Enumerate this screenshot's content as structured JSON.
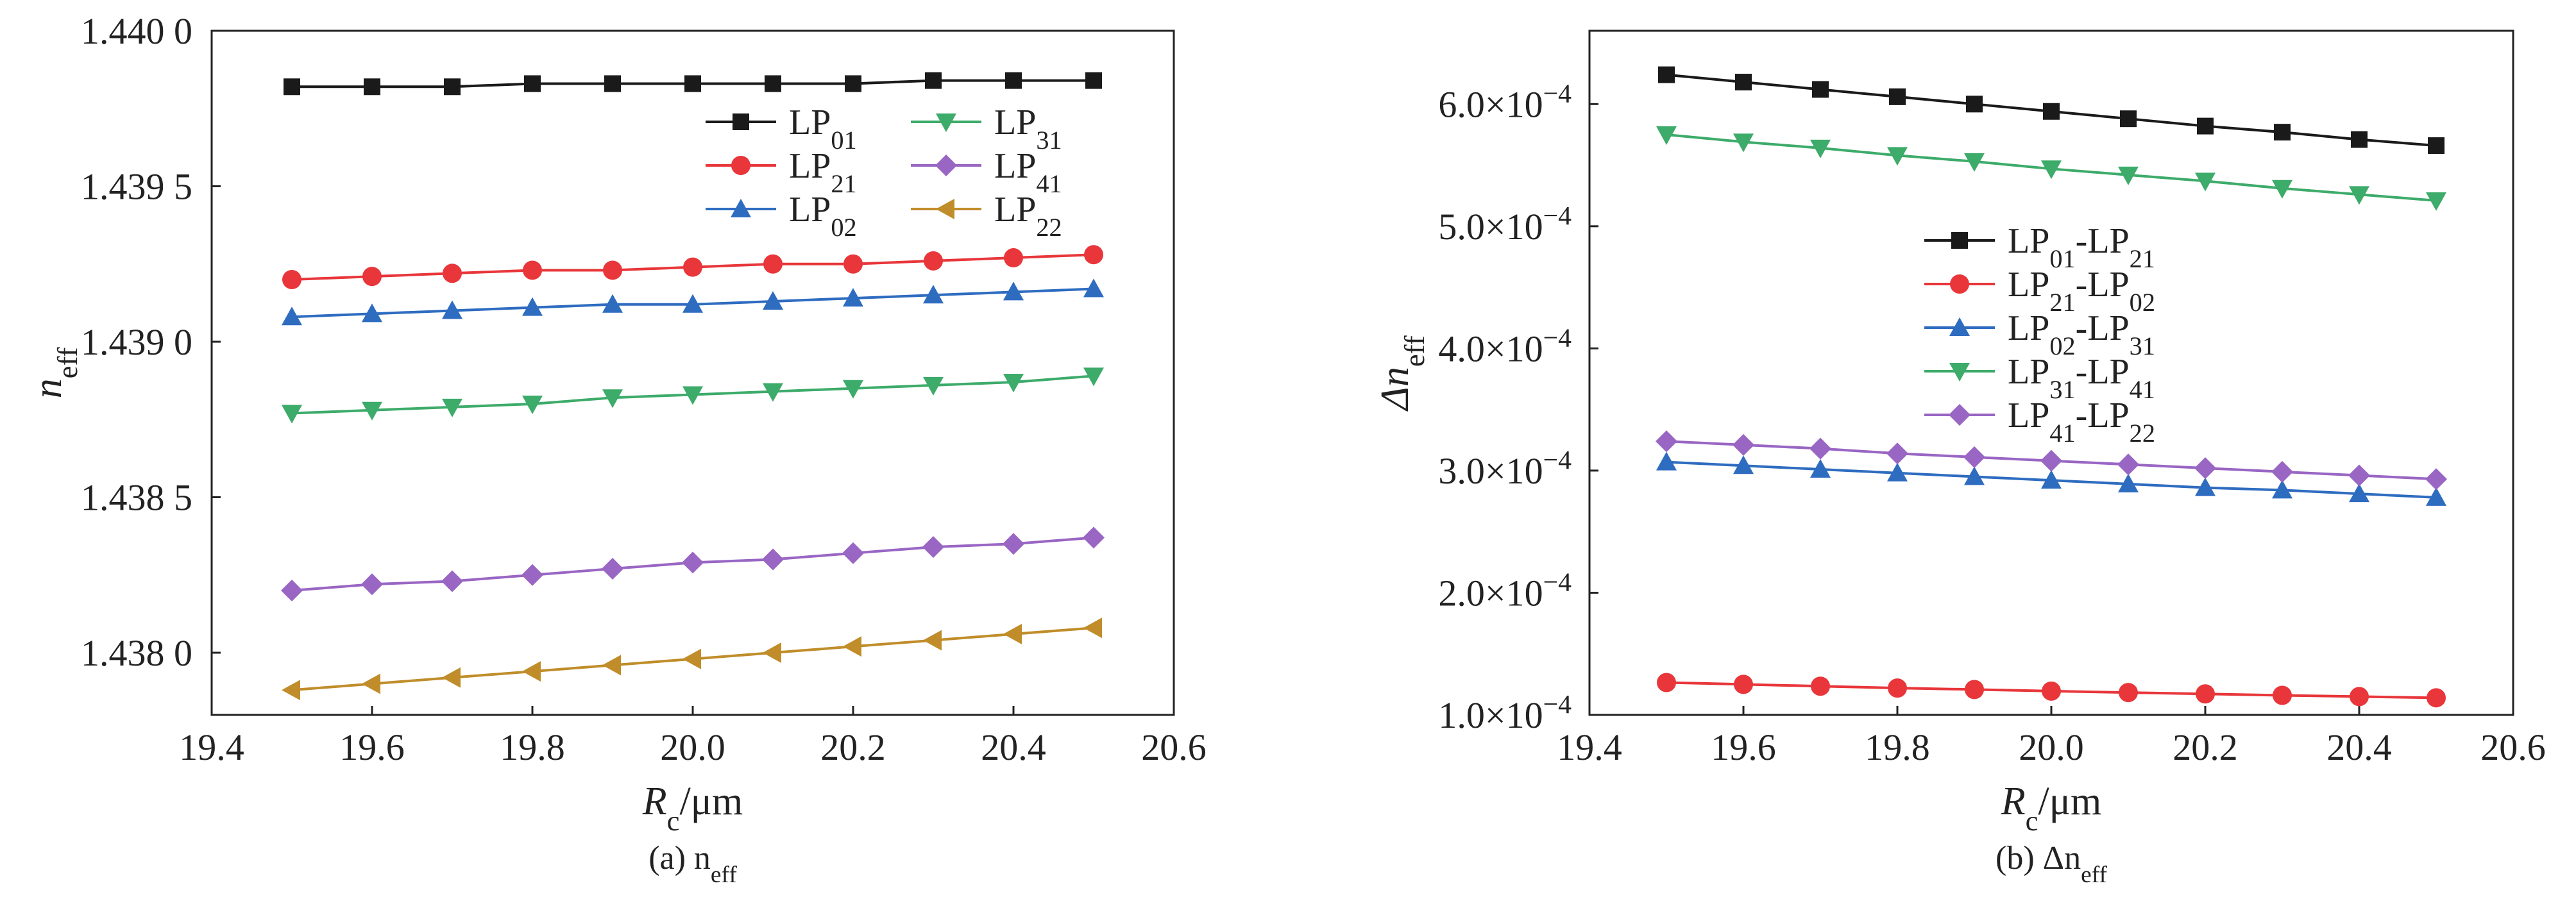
{
  "chart_data": [
    {
      "type": "line",
      "panel_caption": "(a) n",
      "panel_caption_sub": "eff",
      "xlabel": "R",
      "xlabel_sub": "c",
      "xlabel_unit": "/μm",
      "ylabel": "n",
      "ylabel_sub": "eff",
      "xlim": [
        19.4,
        20.6
      ],
      "ylim": [
        1.4378,
        1.44
      ],
      "xticks": [
        19.4,
        19.6,
        19.8,
        20.0,
        20.2,
        20.4,
        20.6
      ],
      "xtick_labels": [
        "19.4",
        "19.6",
        "19.8",
        "20.0",
        "20.2",
        "20.4",
        "20.6"
      ],
      "yticks": [
        1.438,
        1.4385,
        1.439,
        1.4395,
        1.44
      ],
      "ytick_labels": [
        "1.438 0",
        "1.438 5",
        "1.439 0",
        "1.439 5",
        "1.440 0"
      ],
      "legend_position": "top-right",
      "legend_columns": 2,
      "x": [
        19.5,
        19.6,
        19.7,
        19.8,
        19.9,
        20.0,
        20.1,
        20.2,
        20.3,
        20.4,
        20.5
      ],
      "series": [
        {
          "name": "LP",
          "sub": "01",
          "color": "#1a1a1a",
          "marker": "square",
          "values": [
            1.43982,
            1.43982,
            1.43982,
            1.43983,
            1.43983,
            1.43983,
            1.43983,
            1.43983,
            1.43984,
            1.43984,
            1.43984
          ]
        },
        {
          "name": "LP",
          "sub": "21",
          "color": "#e8363a",
          "marker": "circle",
          "values": [
            1.4392,
            1.43921,
            1.43922,
            1.43923,
            1.43923,
            1.43924,
            1.43925,
            1.43925,
            1.43926,
            1.43927,
            1.43928
          ]
        },
        {
          "name": "LP",
          "sub": "02",
          "color": "#2e6cc0",
          "marker": "triangle-up",
          "values": [
            1.43908,
            1.43909,
            1.4391,
            1.43911,
            1.43912,
            1.43912,
            1.43913,
            1.43914,
            1.43915,
            1.43916,
            1.43917
          ]
        },
        {
          "name": "LP",
          "sub": "31",
          "color": "#3dab6a",
          "marker": "triangle-down",
          "values": [
            1.43877,
            1.43878,
            1.43879,
            1.4388,
            1.43882,
            1.43883,
            1.43884,
            1.43885,
            1.43886,
            1.43887,
            1.43889
          ]
        },
        {
          "name": "LP",
          "sub": "41",
          "color": "#9966c4",
          "marker": "diamond",
          "values": [
            1.4382,
            1.43822,
            1.43823,
            1.43825,
            1.43827,
            1.43829,
            1.4383,
            1.43832,
            1.43834,
            1.43835,
            1.43837
          ]
        },
        {
          "name": "LP",
          "sub": "22",
          "color": "#c08d2a",
          "marker": "triangle-left",
          "values": [
            1.43788,
            1.4379,
            1.43792,
            1.43794,
            1.43796,
            1.43798,
            1.438,
            1.43802,
            1.43804,
            1.43806,
            1.43808
          ]
        }
      ]
    },
    {
      "type": "line",
      "panel_caption": "(b) Δn",
      "panel_caption_sub": "eff",
      "xlabel": "R",
      "xlabel_sub": "c",
      "xlabel_unit": "/μm",
      "ylabel": "Δn",
      "ylabel_sub": "eff",
      "xlim": [
        19.4,
        20.6
      ],
      "ylim": [
        0.0001,
        0.00066
      ],
      "xticks": [
        19.4,
        19.6,
        19.8,
        20.0,
        20.2,
        20.4,
        20.6
      ],
      "xtick_labels": [
        "19.4",
        "19.6",
        "19.8",
        "20.0",
        "20.2",
        "20.4",
        "20.6"
      ],
      "yticks": [
        0.0001,
        0.0002,
        0.0003,
        0.0004,
        0.0005,
        0.0006
      ],
      "ytick_mantissas": [
        "1.0",
        "2.0",
        "3.0",
        "4.0",
        "5.0",
        "6.0"
      ],
      "ytick_base": "×10",
      "ytick_exp": "−4",
      "legend_position": "right",
      "legend_columns": 1,
      "x": [
        19.5,
        19.6,
        19.7,
        19.8,
        19.9,
        20.0,
        20.1,
        20.2,
        20.3,
        20.4,
        20.5
      ],
      "series": [
        {
          "name": "LP",
          "sub": "01",
          "name2": "-LP",
          "sub2": "21",
          "color": "#1a1a1a",
          "marker": "square",
          "values": [
            0.000624,
            0.000618,
            0.000612,
            0.000606,
            0.0006,
            0.000594,
            0.000588,
            0.000582,
            0.000577,
            0.000571,
            0.000566
          ]
        },
        {
          "name": "LP",
          "sub": "21",
          "name2": "-LP",
          "sub2": "02",
          "color": "#e8363a",
          "marker": "circle",
          "values": [
            0.0001265,
            0.000125,
            0.0001235,
            0.000122,
            0.0001208,
            0.0001195,
            0.0001183,
            0.0001172,
            0.000116,
            0.000115,
            0.000114
          ]
        },
        {
          "name": "LP",
          "sub": "02",
          "name2": "-LP",
          "sub2": "31",
          "color": "#2e6cc0",
          "marker": "triangle-up",
          "values": [
            0.000307,
            0.000304,
            0.000301,
            0.000298,
            0.000295,
            0.000292,
            0.000289,
            0.000286,
            0.000284,
            0.000281,
            0.000278
          ]
        },
        {
          "name": "LP",
          "sub": "31",
          "name2": "-LP",
          "sub2": "41",
          "color": "#3dab6a",
          "marker": "triangle-down",
          "values": [
            0.000575,
            0.000569,
            0.000564,
            0.000558,
            0.000553,
            0.000547,
            0.000542,
            0.000537,
            0.000531,
            0.000526,
            0.000521
          ]
        },
        {
          "name": "LP",
          "sub": "41",
          "name2": "-LP",
          "sub2": "22",
          "color": "#9966c4",
          "marker": "diamond",
          "values": [
            0.000324,
            0.000321,
            0.000318,
            0.000314,
            0.000311,
            0.000308,
            0.000305,
            0.000302,
            0.000299,
            0.000296,
            0.000293
          ]
        }
      ]
    }
  ]
}
